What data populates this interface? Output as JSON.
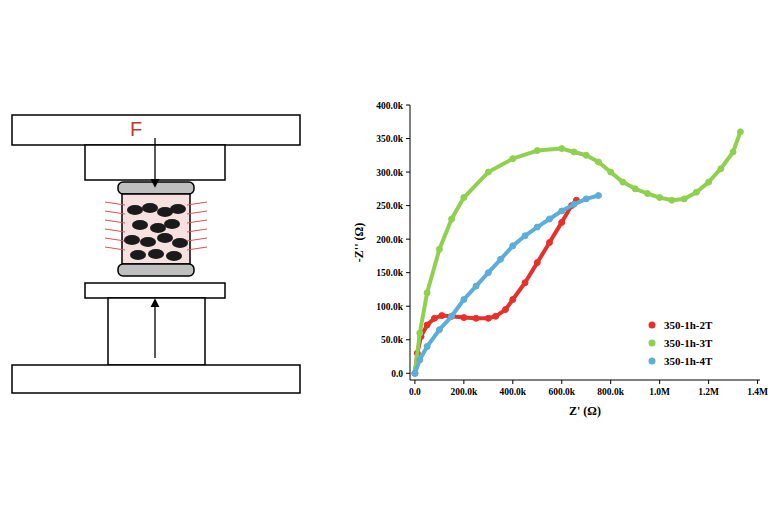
{
  "schematic": {
    "force_label": "F"
  },
  "chart_data": {
    "type": "scatter",
    "x_label": "Z' (Ω)",
    "y_label": "-Z'' (Ω)",
    "xlim": [
      -20000,
      1410000
    ],
    "ylim": [
      -10000,
      400000
    ],
    "xticks": [
      {
        "value": 0,
        "label": "0.0"
      },
      {
        "value": 200000,
        "label": "200.0k"
      },
      {
        "value": 400000,
        "label": "400.0k"
      },
      {
        "value": 600000,
        "label": "600.0k"
      },
      {
        "value": 800000,
        "label": "800.0k"
      },
      {
        "value": 1000000,
        "label": "1.0M"
      },
      {
        "value": 1200000,
        "label": "1.2M"
      },
      {
        "value": 1400000,
        "label": "1.4M"
      }
    ],
    "yticks": [
      {
        "value": 0,
        "label": "0.0"
      },
      {
        "value": 50000,
        "label": "50.0k"
      },
      {
        "value": 100000,
        "label": "100.0k"
      },
      {
        "value": 150000,
        "label": "150.0k"
      },
      {
        "value": 200000,
        "label": "200.0k"
      },
      {
        "value": 250000,
        "label": "250.0k"
      },
      {
        "value": 300000,
        "label": "300.0k"
      },
      {
        "value": 350000,
        "label": "350.0k"
      },
      {
        "value": 400000,
        "label": "400.0k"
      }
    ],
    "grid": false,
    "legend": "lower right",
    "marker": "circle",
    "line_style": "solid",
    "series": [
      {
        "name": "350-1h-2T",
        "color": "#e8302a",
        "x": [
          0,
          10000,
          25000,
          50000,
          80000,
          110000,
          150000,
          200000,
          250000,
          300000,
          330000,
          370000,
          400000,
          450000,
          500000,
          550000,
          600000,
          640000,
          660000
        ],
        "values": [
          0,
          30000,
          55000,
          72000,
          82000,
          86000,
          85000,
          83000,
          82000,
          82000,
          85000,
          95000,
          110000,
          135000,
          165000,
          195000,
          225000,
          250000,
          258000
        ]
      },
      {
        "name": "350-1h-3T",
        "color": "#8fd14f",
        "x": [
          0,
          20000,
          50000,
          100000,
          150000,
          200000,
          300000,
          400000,
          500000,
          600000,
          650000,
          700000,
          750000,
          800000,
          850000,
          900000,
          950000,
          1000000,
          1050000,
          1100000,
          1150000,
          1200000,
          1250000,
          1300000,
          1330000
        ],
        "values": [
          0,
          60000,
          120000,
          185000,
          230000,
          262000,
          300000,
          320000,
          332000,
          335000,
          330000,
          325000,
          315000,
          300000,
          285000,
          275000,
          268000,
          262000,
          258000,
          260000,
          270000,
          285000,
          305000,
          330000,
          360000
        ]
      },
      {
        "name": "350-1h-4T",
        "color": "#5aaed8",
        "x": [
          0,
          20000,
          50000,
          100000,
          150000,
          200000,
          250000,
          300000,
          350000,
          400000,
          450000,
          500000,
          550000,
          600000,
          650000,
          700000,
          750000
        ],
        "values": [
          0,
          20000,
          40000,
          65000,
          85000,
          110000,
          130000,
          150000,
          170000,
          190000,
          205000,
          218000,
          230000,
          242000,
          252000,
          260000,
          265000
        ]
      }
    ]
  }
}
